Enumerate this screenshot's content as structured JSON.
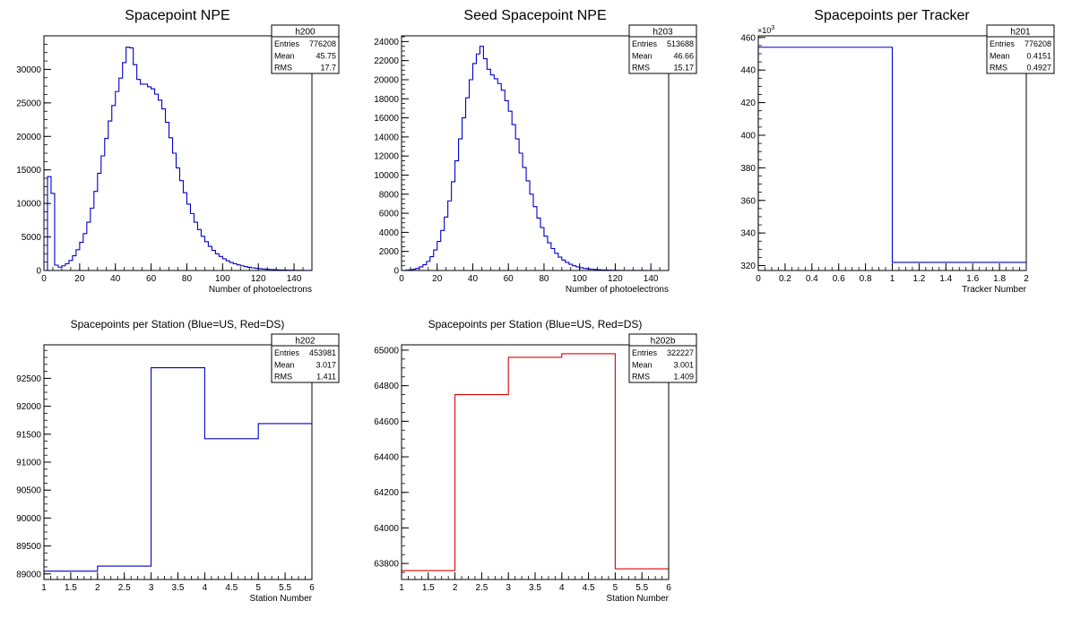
{
  "colors": {
    "blue": "#0000cc",
    "red": "#dd0000",
    "axis": "#000000",
    "background": "#ffffff"
  },
  "chart_data": [
    {
      "type": "bar",
      "style": "histogram-step",
      "title": "Spacepoint NPE",
      "xlabel": "Number of photoelectrons",
      "ylabel": "",
      "xlim": [
        0,
        150
      ],
      "ylim": [
        0,
        35000
      ],
      "xticks": [
        0,
        20,
        40,
        60,
        80,
        100,
        120,
        140
      ],
      "yticks": [
        0,
        5000,
        10000,
        15000,
        20000,
        25000,
        30000
      ],
      "grid": false,
      "color": "blue",
      "bin_width": 2,
      "values": [
        0,
        14000,
        11500,
        800,
        500,
        700,
        1000,
        1500,
        2200,
        3100,
        4200,
        5500,
        7200,
        9300,
        11800,
        14500,
        17100,
        19700,
        22300,
        24600,
        26700,
        28700,
        31000,
        33300,
        33200,
        30700,
        28500,
        27800,
        27800,
        27400,
        27100,
        26300,
        25400,
        24100,
        22100,
        19800,
        17500,
        15300,
        13400,
        11600,
        9900,
        8500,
        7200,
        6100,
        5100,
        4300,
        3600,
        3000,
        2500,
        2100,
        1750,
        1450,
        1200,
        1000,
        850,
        700,
        580,
        480,
        400,
        330,
        270,
        220,
        180,
        150,
        120,
        100,
        80,
        65,
        50,
        40,
        30,
        25,
        20,
        15,
        10
      ],
      "stats": {
        "name": "h200",
        "rows": [
          {
            "label": "Entries",
            "value": "776208"
          },
          {
            "label": "Mean",
            "value": "45.75"
          },
          {
            "label": "RMS",
            "value": "17.7"
          }
        ]
      }
    },
    {
      "type": "bar",
      "style": "histogram-step",
      "title": "Seed Spacepoint NPE",
      "xlabel": "Number of photoelectrons",
      "ylabel": "",
      "xlim": [
        0,
        150
      ],
      "ylim": [
        0,
        24600
      ],
      "xticks": [
        0,
        20,
        40,
        60,
        80,
        100,
        120,
        140
      ],
      "yticks": [
        0,
        2000,
        4000,
        6000,
        8000,
        10000,
        12000,
        14000,
        16000,
        18000,
        20000,
        22000,
        24000
      ],
      "grid": false,
      "color": "blue",
      "bin_width": 2,
      "values": [
        0,
        30,
        60,
        120,
        220,
        380,
        600,
        950,
        1450,
        2150,
        3050,
        4200,
        5600,
        7300,
        9300,
        11500,
        13800,
        16000,
        18100,
        20000,
        21700,
        22700,
        23500,
        22200,
        21100,
        20500,
        20100,
        19600,
        18900,
        17800,
        16700,
        15300,
        13800,
        12300,
        10800,
        9400,
        8000,
        6700,
        5500,
        4500,
        3600,
        2900,
        2300,
        1800,
        1400,
        1100,
        850,
        650,
        500,
        380,
        290,
        220,
        170,
        130,
        100,
        75,
        55,
        40,
        30,
        20,
        15,
        10,
        8,
        6,
        5,
        4,
        3,
        2,
        2,
        1,
        1,
        1,
        0,
        0,
        0
      ],
      "stats": {
        "name": "h203",
        "rows": [
          {
            "label": "Entries",
            "value": "513688"
          },
          {
            "label": "Mean",
            "value": "46.66"
          },
          {
            "label": "RMS",
            "value": "15.17"
          }
        ]
      }
    },
    {
      "type": "bar",
      "style": "histogram-step",
      "title": "Spacepoints per Tracker",
      "xlabel": "Tracker Number",
      "ylabel": "",
      "ymultiplier": "×10",
      "ymultiplier_exp": "3",
      "xlim": [
        0,
        2
      ],
      "ylim": [
        317,
        461
      ],
      "xticks": [
        0,
        0.2,
        0.4,
        0.6,
        0.8,
        1,
        1.2,
        1.4,
        1.6,
        1.8,
        2
      ],
      "xtick_labels": [
        "0",
        "0.2",
        "0.4",
        "0.6",
        "0.8",
        "1",
        "1.2",
        "1.4",
        "1.6",
        "1.8",
        "2"
      ],
      "yticks": [
        320,
        340,
        360,
        380,
        400,
        420,
        440,
        460
      ],
      "grid": false,
      "color": "blue",
      "bin_width": 1,
      "values": [
        454,
        322
      ],
      "stats": {
        "name": "h201",
        "rows": [
          {
            "label": "Entries",
            "value": "776208"
          },
          {
            "label": "Mean",
            "value": "0.4151"
          },
          {
            "label": "RMS",
            "value": "0.4927"
          }
        ]
      }
    },
    {
      "type": "bar",
      "style": "histogram-step",
      "title": "Spacepoints per Station (Blue=US, Red=DS)",
      "xlabel": "Station Number",
      "ylabel": "",
      "xlim": [
        1,
        6
      ],
      "ylim": [
        88900,
        93100
      ],
      "xticks": [
        1,
        1.5,
        2,
        2.5,
        3,
        3.5,
        4,
        4.5,
        5,
        5.5,
        6
      ],
      "xtick_labels": [
        "1",
        "1.5",
        "2",
        "2.5",
        "3",
        "3.5",
        "4",
        "4.5",
        "5",
        "5.5",
        "6"
      ],
      "yticks": [
        89000,
        89500,
        90000,
        90500,
        91000,
        91500,
        92000,
        92500
      ],
      "grid": false,
      "color": "blue",
      "bin_width": 1,
      "values": [
        89050,
        89140,
        92690,
        91420,
        91690
      ],
      "stats": {
        "name": "h202",
        "rows": [
          {
            "label": "Entries",
            "value": "453981"
          },
          {
            "label": "Mean",
            "value": "3.017"
          },
          {
            "label": "RMS",
            "value": "1.411"
          }
        ]
      }
    },
    {
      "type": "bar",
      "style": "histogram-step",
      "title": "Spacepoints per Station (Blue=US, Red=DS)",
      "xlabel": "Station Number",
      "ylabel": "",
      "xlim": [
        1,
        6
      ],
      "ylim": [
        63710,
        65030
      ],
      "xticks": [
        1,
        1.5,
        2,
        2.5,
        3,
        3.5,
        4,
        4.5,
        5,
        5.5,
        6
      ],
      "xtick_labels": [
        "1",
        "1.5",
        "2",
        "2.5",
        "3",
        "3.5",
        "4",
        "4.5",
        "5",
        "5.5",
        "6"
      ],
      "yticks": [
        63800,
        64000,
        64200,
        64400,
        64600,
        64800,
        65000
      ],
      "grid": false,
      "color": "red",
      "bin_width": 1,
      "values": [
        63760,
        64750,
        64960,
        64980,
        63770
      ],
      "stats": {
        "name": "h202b",
        "rows": [
          {
            "label": "Entries",
            "value": "322227"
          },
          {
            "label": "Mean",
            "value": "3.001"
          },
          {
            "label": "RMS",
            "value": "1.409"
          }
        ]
      }
    }
  ]
}
